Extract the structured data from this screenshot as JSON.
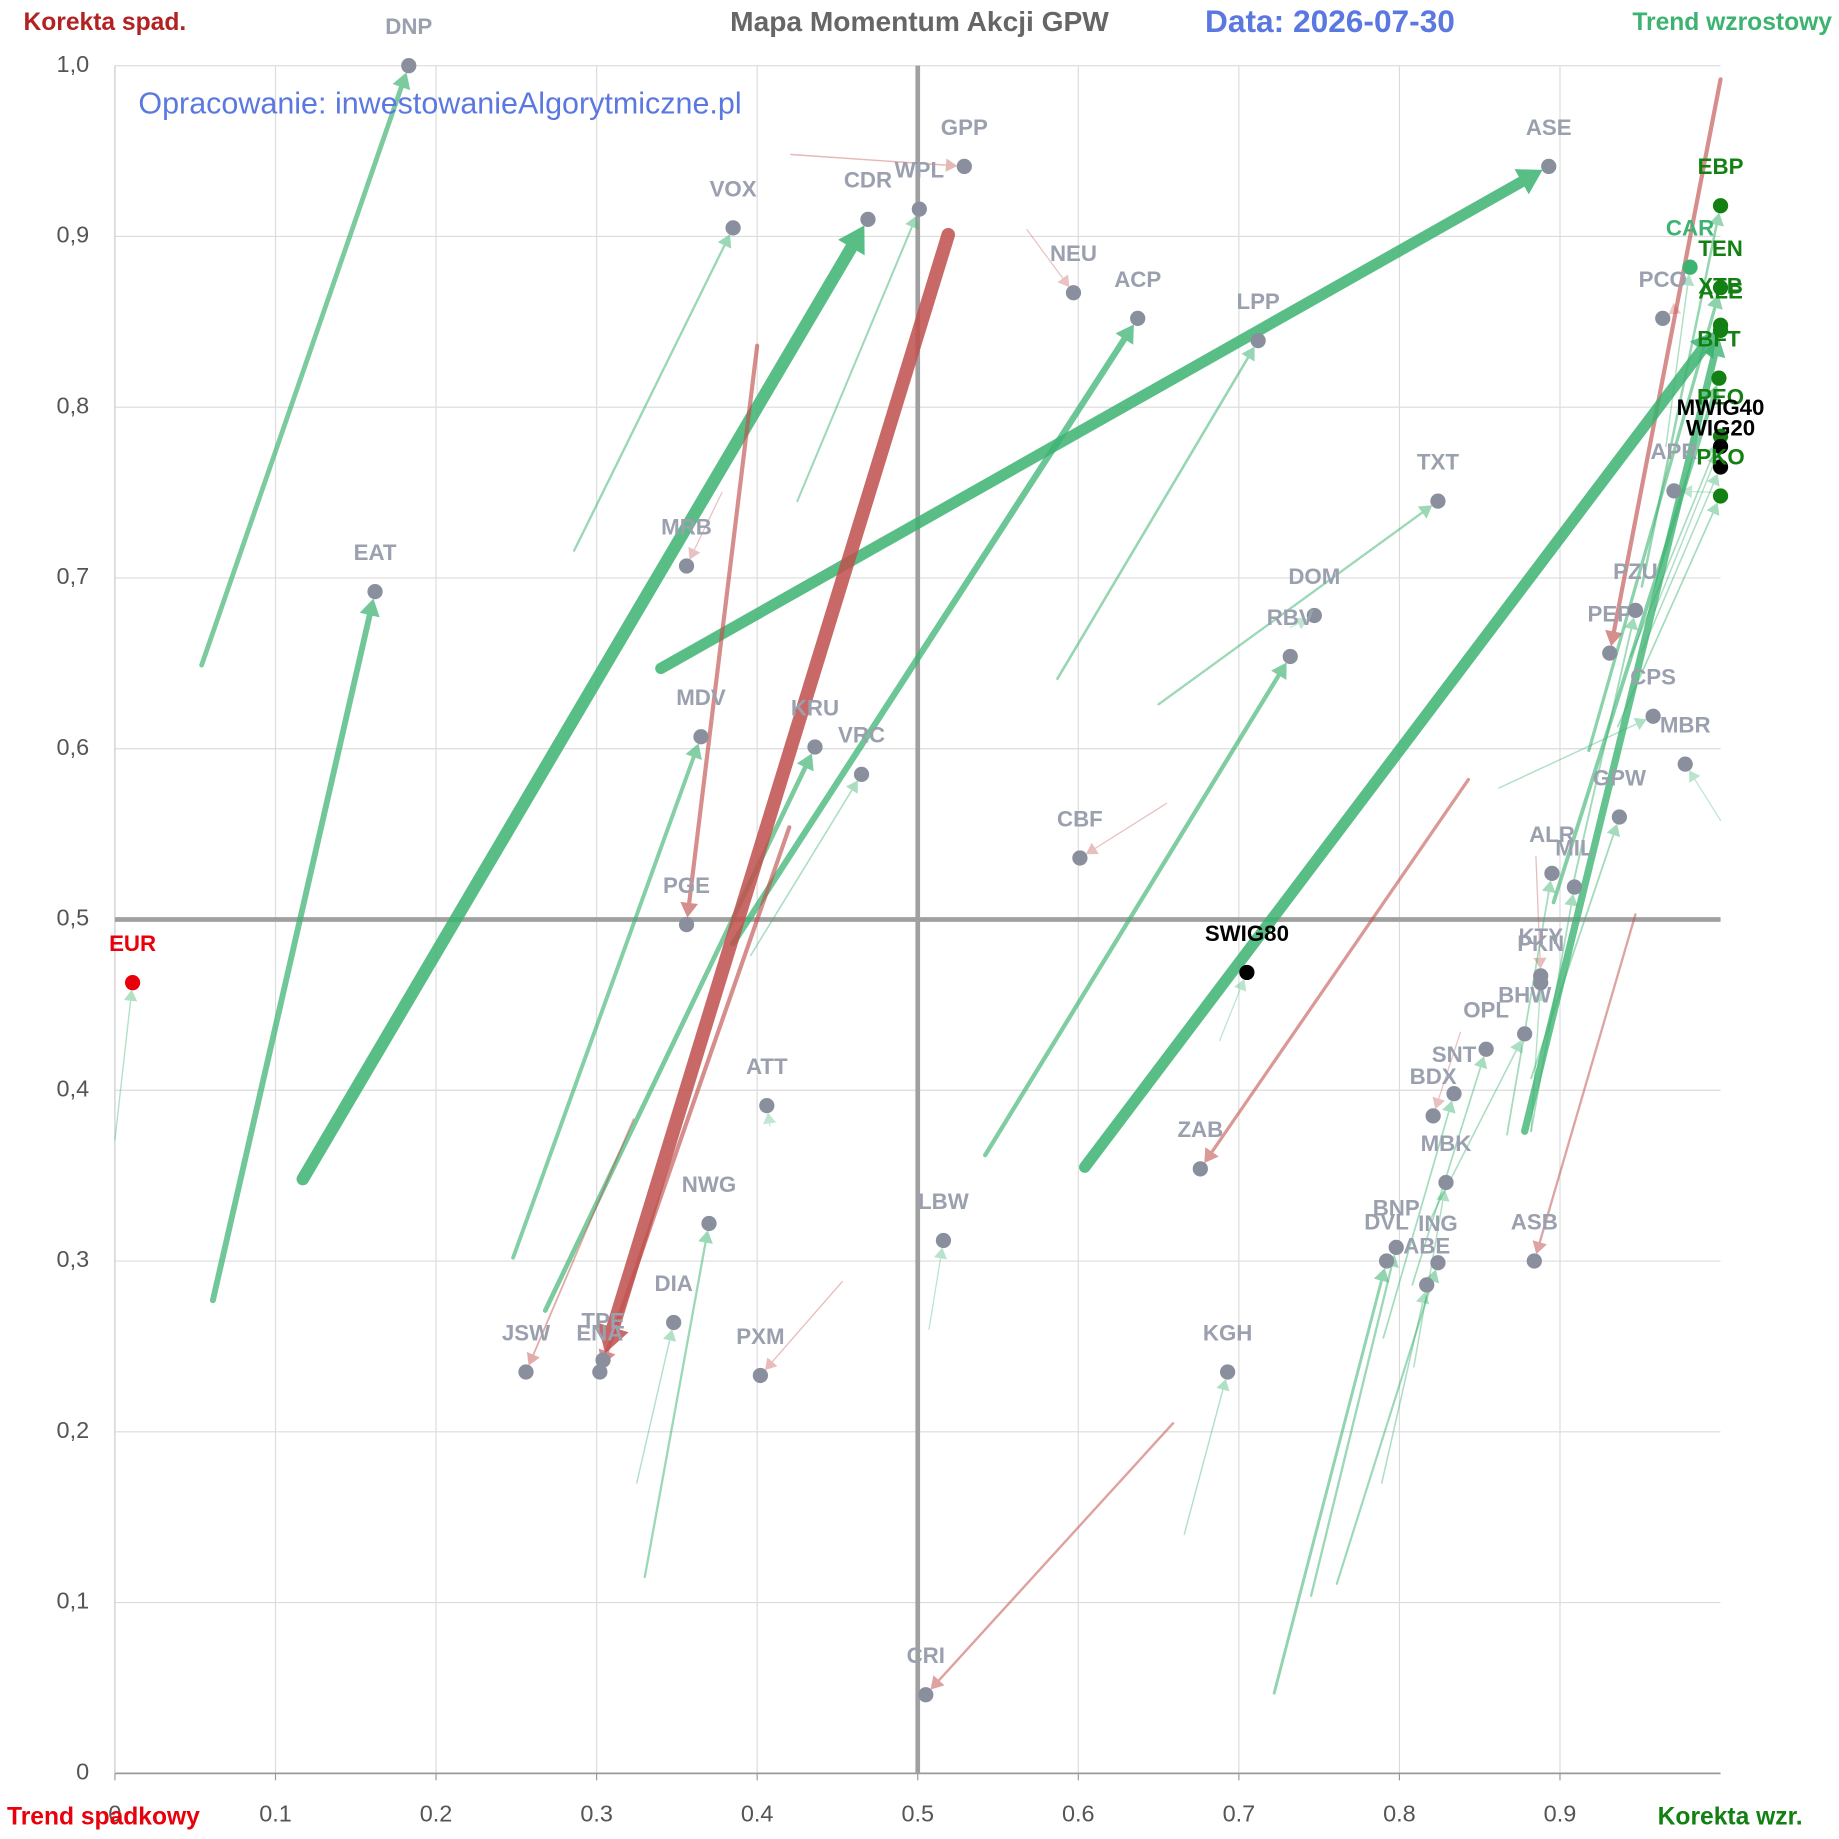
{
  "chart_data": {
    "type": "momentum-map",
    "title": "Mapa Momentum Akcji GPW",
    "subtitle": "Data: 2026-07-30",
    "annotation": "Opracowanie: inwestowanieAlgorytmiczne.pl",
    "corner_labels": {
      "top_left": "Korekta spad.",
      "top_right": "Trend wzrostowy",
      "bottom_left": "Trend spadkowy",
      "bottom_right": "Korekta wzr."
    },
    "xlim": [
      0,
      1
    ],
    "ylim": [
      0,
      1
    ],
    "xticks": [
      0,
      0.1,
      0.2,
      0.3,
      0.4,
      0.5,
      0.6,
      0.7,
      0.8,
      0.9
    ],
    "yticks": [
      0,
      {
        "value": 0.1,
        "label": "0,1"
      },
      {
        "value": 0.2,
        "label": "0,2"
      },
      {
        "value": 0.3,
        "label": "0,3"
      },
      {
        "value": 0.4,
        "label": "0,4"
      },
      {
        "value": 0.5,
        "label": "0,5"
      },
      {
        "value": 0.6,
        "label": "0,6"
      },
      {
        "value": 0.7,
        "label": "0,7"
      },
      {
        "value": 0.8,
        "label": "0,8"
      },
      {
        "value": 0.9,
        "label": "0,9"
      },
      {
        "value": 1.0,
        "label": "1,0"
      }
    ],
    "grid": true,
    "rise_color": "#3cb371",
    "fall_color": "#c0504d",
    "points": [
      {
        "name": "DNP",
        "x": 0.183,
        "y": 1.0,
        "from_x": 0.054,
        "from_y": 0.649,
        "color": "#8a8f9e"
      },
      {
        "name": "EAT",
        "x": 0.162,
        "y": 0.692,
        "from_x": 0.061,
        "from_y": 0.277,
        "color": "#8a8f9e"
      },
      {
        "name": "VOX",
        "x": 0.385,
        "y": 0.905,
        "from_x": 0.286,
        "from_y": 0.716,
        "color": "#8a8f9e"
      },
      {
        "name": "CDR",
        "x": 0.469,
        "y": 0.91,
        "from_x": 0.117,
        "from_y": 0.348,
        "color": "#8a8f9e"
      },
      {
        "name": "WPL",
        "x": 0.501,
        "y": 0.916,
        "from_x": 0.425,
        "from_y": 0.745,
        "color": "#8a8f9e"
      },
      {
        "name": "GPP",
        "x": 0.529,
        "y": 0.941,
        "from_x": 0.421,
        "from_y": 0.948,
        "color": "#8a8f9e"
      },
      {
        "name": "NEU",
        "x": 0.597,
        "y": 0.867,
        "from_x": 0.568,
        "from_y": 0.904,
        "color": "#8a8f9e"
      },
      {
        "name": "ACP",
        "x": 0.637,
        "y": 0.852,
        "from_x": 0.385,
        "from_y": 0.486,
        "color": "#8a8f9e"
      },
      {
        "name": "LPP",
        "x": 0.712,
        "y": 0.839,
        "from_x": 0.587,
        "from_y": 0.641,
        "color": "#8a8f9e"
      },
      {
        "name": "ASE",
        "x": 0.893,
        "y": 0.941,
        "from_x": 0.34,
        "from_y": 0.647,
        "color": "#8a8f9e"
      },
      {
        "name": "TXT",
        "x": 0.824,
        "y": 0.745,
        "from_x": 0.65,
        "from_y": 0.626,
        "color": "#8a8f9e"
      },
      {
        "name": "DOM",
        "x": 0.747,
        "y": 0.678,
        "from_x": 0.732,
        "from_y": 0.671,
        "color": "#8a8f9e"
      },
      {
        "name": "RBV",
        "x": 0.732,
        "y": 0.654,
        "from_x": 0.542,
        "from_y": 0.362,
        "color": "#8a8f9e"
      },
      {
        "name": "MRB",
        "x": 0.356,
        "y": 0.707,
        "from_x": 0.378,
        "from_y": 0.75,
        "color": "#8a8f9e"
      },
      {
        "name": "MDV",
        "x": 0.365,
        "y": 0.607,
        "from_x": 0.248,
        "from_y": 0.302,
        "color": "#8a8f9e"
      },
      {
        "name": "KRU",
        "x": 0.436,
        "y": 0.601,
        "from_x": 0.268,
        "from_y": 0.271,
        "color": "#8a8f9e"
      },
      {
        "name": "VRC",
        "x": 0.465,
        "y": 0.585,
        "from_x": 0.396,
        "from_y": 0.479,
        "color": "#8a8f9e"
      },
      {
        "name": "PGE",
        "x": 0.356,
        "y": 0.497,
        "from_x": 0.4,
        "from_y": 0.836,
        "color": "#8a8f9e"
      },
      {
        "name": "TPE",
        "x": 0.304,
        "y": 0.242,
        "from_x": 0.519,
        "from_y": 0.901,
        "color": "#8a8f9e"
      },
      {
        "name": "ENA",
        "x": 0.302,
        "y": 0.235,
        "from_x": 0.42,
        "from_y": 0.554,
        "color": "#8a8f9e"
      },
      {
        "name": "JSW",
        "x": 0.256,
        "y": 0.235,
        "from_x": 0.323,
        "from_y": 0.383,
        "color": "#8a8f9e"
      },
      {
        "name": "DIA",
        "x": 0.348,
        "y": 0.264,
        "from_x": 0.325,
        "from_y": 0.17,
        "color": "#8a8f9e"
      },
      {
        "name": "NWG",
        "x": 0.37,
        "y": 0.322,
        "from_x": 0.33,
        "from_y": 0.115,
        "color": "#8a8f9e"
      },
      {
        "name": "PXM",
        "x": 0.402,
        "y": 0.233,
        "from_x": 0.453,
        "from_y": 0.288,
        "color": "#8a8f9e"
      },
      {
        "name": "ATT",
        "x": 0.406,
        "y": 0.391,
        "from_x": 0.408,
        "from_y": 0.379,
        "color": "#8a8f9e"
      },
      {
        "name": "CBF",
        "x": 0.601,
        "y": 0.536,
        "from_x": 0.655,
        "from_y": 0.568,
        "color": "#8a8f9e"
      },
      {
        "name": "LBW",
        "x": 0.516,
        "y": 0.312,
        "from_x": 0.507,
        "from_y": 0.26,
        "color": "#8a8f9e"
      },
      {
        "name": "CRI",
        "x": 0.505,
        "y": 0.046,
        "from_x": 0.659,
        "from_y": 0.205,
        "color": "#8a8f9e"
      },
      {
        "name": "KGH",
        "x": 0.693,
        "y": 0.235,
        "from_x": 0.666,
        "from_y": 0.14,
        "color": "#8a8f9e"
      },
      {
        "name": "ZAB",
        "x": 0.676,
        "y": 0.354,
        "from_x": 0.843,
        "from_y": 0.582,
        "color": "#8a8f9e"
      },
      {
        "name": "SWIG80",
        "x": 0.705,
        "y": 0.469,
        "from_x": 0.688,
        "from_y": 0.429,
        "color": "#000000"
      },
      {
        "name": "EUR",
        "x": 0.011,
        "y": 0.463,
        "from_x": 0.0,
        "from_y": 0.371,
        "color": "#e8000b"
      },
      {
        "name": "ASB",
        "x": 0.884,
        "y": 0.3,
        "from_x": 0.947,
        "from_y": 0.503,
        "color": "#8a8f9e"
      },
      {
        "name": "BNP",
        "x": 0.798,
        "y": 0.308,
        "from_x": 0.745,
        "from_y": 0.104,
        "color": "#8a8f9e"
      },
      {
        "name": "DVL",
        "x": 0.792,
        "y": 0.3,
        "from_x": 0.722,
        "from_y": 0.047,
        "color": "#8a8f9e"
      },
      {
        "name": "ING",
        "x": 0.824,
        "y": 0.299,
        "from_x": 0.761,
        "from_y": 0.111,
        "color": "#8a8f9e"
      },
      {
        "name": "ABE",
        "x": 0.817,
        "y": 0.286,
        "from_x": 0.789,
        "from_y": 0.17,
        "color": "#8a8f9e"
      },
      {
        "name": "MBK",
        "x": 0.829,
        "y": 0.346,
        "from_x": 0.809,
        "from_y": 0.238,
        "color": "#8a8f9e"
      },
      {
        "name": "BDX",
        "x": 0.821,
        "y": 0.385,
        "from_x": 0.838,
        "from_y": 0.434,
        "color": "#8a8f9e"
      },
      {
        "name": "SNT",
        "x": 0.834,
        "y": 0.398,
        "from_x": 0.79,
        "from_y": 0.255,
        "color": "#8a8f9e"
      },
      {
        "name": "OPL",
        "x": 0.854,
        "y": 0.424,
        "from_x": 0.808,
        "from_y": 0.286,
        "color": "#8a8f9e"
      },
      {
        "name": "BHW",
        "x": 0.878,
        "y": 0.433,
        "from_x": 0.819,
        "from_y": 0.324,
        "color": "#8a8f9e"
      },
      {
        "name": "PKN",
        "x": 0.888,
        "y": 0.463,
        "from_x": 0.882,
        "from_y": 0.376,
        "color": "#8a8f9e"
      },
      {
        "name": "KTY",
        "x": 0.888,
        "y": 0.467,
        "from_x": 0.885,
        "from_y": 0.537,
        "color": "#8a8f9e"
      },
      {
        "name": "ALR",
        "x": 0.895,
        "y": 0.527,
        "from_x": 0.867,
        "from_y": 0.374,
        "color": "#8a8f9e"
      },
      {
        "name": "MIL",
        "x": 0.909,
        "y": 0.519,
        "from_x": 0.882,
        "from_y": 0.376,
        "color": "#8a8f9e"
      },
      {
        "name": "GPW",
        "x": 0.937,
        "y": 0.56,
        "from_x": 0.882,
        "from_y": 0.407,
        "color": "#8a8f9e"
      },
      {
        "name": "MBR",
        "x": 0.978,
        "y": 0.591,
        "from_x": 1.0,
        "from_y": 0.558,
        "color": "#8a8f9e"
      },
      {
        "name": "CPS",
        "x": 0.958,
        "y": 0.619,
        "from_x": 0.862,
        "from_y": 0.577,
        "color": "#8a8f9e"
      },
      {
        "name": "PEP",
        "x": 0.931,
        "y": 0.656,
        "from_x": 1.0,
        "from_y": 0.992,
        "color": "#8a8f9e"
      },
      {
        "name": "PZU",
        "x": 0.947,
        "y": 0.681,
        "from_x": 0.907,
        "from_y": 0.516,
        "color": "#8a8f9e"
      },
      {
        "name": "APR",
        "x": 0.971,
        "y": 0.751,
        "from_x": 1.0,
        "from_y": 0.75,
        "color": "#8a8f9e"
      },
      {
        "name": "PCO",
        "x": 0.964,
        "y": 0.852,
        "from_x": 0.973,
        "from_y": 0.858,
        "color": "#8a8f9e"
      },
      {
        "name": "CAR",
        "x": 0.981,
        "y": 0.882,
        "from_x": 0.966,
        "from_y": 0.777,
        "color": "#3cb371"
      },
      {
        "name": "EBP",
        "x": 1.0,
        "y": 0.918,
        "from_x": 0.951,
        "from_y": 0.695,
        "color": "#138013"
      },
      {
        "name": "TEN",
        "x": 1.0,
        "y": 0.87,
        "from_x": 0.918,
        "from_y": 0.599,
        "color": "#138013"
      },
      {
        "name": "XTB",
        "x": 1.0,
        "y": 0.848,
        "from_x": 0.604,
        "from_y": 0.355,
        "color": "#138013"
      },
      {
        "name": "ALE",
        "x": 1.0,
        "y": 0.845,
        "from_x": 0.878,
        "from_y": 0.376,
        "color": "#138013"
      },
      {
        "name": "BFT",
        "x": 0.999,
        "y": 0.817,
        "from_x": 0.896,
        "from_y": 0.51,
        "color": "#138013"
      },
      {
        "name": "PEO",
        "x": 1.0,
        "y": 0.783,
        "from_x": 0.944,
        "from_y": 0.654,
        "color": "#138013"
      },
      {
        "name": "MWIG40",
        "x": 1.0,
        "y": 0.777,
        "from_x": 0.959,
        "from_y": 0.681,
        "color": "#000000"
      },
      {
        "name": "WIG20",
        "x": 1.0,
        "y": 0.765,
        "from_x": 0.951,
        "from_y": 0.657,
        "color": "#000000"
      },
      {
        "name": "PKO",
        "x": 1.0,
        "y": 0.748,
        "from_x": 0.936,
        "from_y": 0.613,
        "color": "#138013"
      }
    ]
  }
}
